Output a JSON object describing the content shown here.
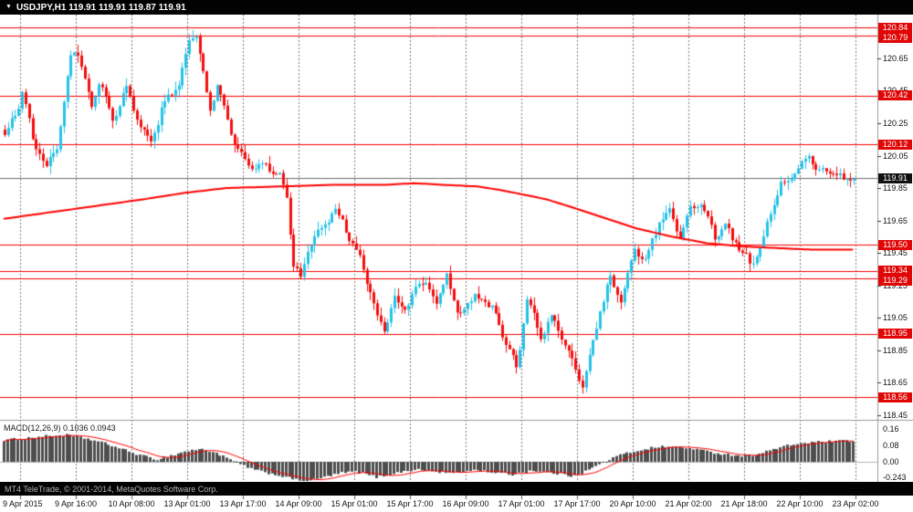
{
  "header": {
    "dropdown_icon": "▼",
    "title": "USDJPY,H1 119.91 119.91 119.87 119.91"
  },
  "macd_panel": {
    "label": "MACD(12,26,9) 0.1036 0.0943",
    "ticks": [
      {
        "label": "0.16",
        "value": 0.16
      },
      {
        "label": "0.08",
        "value": 0.08
      },
      {
        "label": "0.00",
        "value": 0.0
      }
    ],
    "min_label": "-0.243"
  },
  "footer": {
    "copyright": "MT4 TeleTrade, © 2001-2014, MetaQuotes Software Corp."
  },
  "price_axis": {
    "ticks": [
      "120.65",
      "120.45",
      "120.25",
      "120.05",
      "119.85",
      "119.65",
      "119.45",
      "119.25",
      "119.05",
      "118.85",
      "118.65",
      "118.45"
    ],
    "current_price": "119.91"
  },
  "time_axis": {
    "labels": [
      "9 Apr 2015",
      "9 Apr 16:00",
      "10 Apr 08:00",
      "13 Apr 01:00",
      "13 Apr 17:00",
      "14 Apr 09:00",
      "15 Apr 01:00",
      "15 Apr 17:00",
      "16 Apr 09:00",
      "17 Apr 01:00",
      "17 Apr 17:00",
      "20 Apr 10:00",
      "21 Apr 02:00",
      "21 Apr 18:00",
      "22 Apr 10:00",
      "23 Apr 02:00"
    ]
  },
  "colors": {
    "up_candle": "#25c2e8",
    "down_candle": "#f50d0d",
    "line_red": "#f60000",
    "ma": "#ff0000",
    "macd_bar": "#4d4d4d",
    "macd_signal": "#ff0000",
    "grid": "#7a7a7a",
    "badge_red": "#e00606",
    "badge_black": "#111111"
  },
  "chart_data": {
    "type": "candlestick",
    "symbol": "USDJPY",
    "timeframe": "H1",
    "bars": 245,
    "price_range": [
      118.42,
      120.92
    ],
    "current_price": 119.91,
    "horizontal_lines": [
      "120.84",
      "120.79",
      "120.42",
      "120.12",
      "119.50",
      "119.34",
      "119.29",
      "118.95",
      "118.56"
    ],
    "close_waypoints": [
      [
        0,
        120.18
      ],
      [
        3,
        120.3
      ],
      [
        5,
        120.44
      ],
      [
        8,
        120.16
      ],
      [
        12,
        119.97
      ],
      [
        15,
        120.12
      ],
      [
        19,
        120.66
      ],
      [
        21,
        120.7
      ],
      [
        23,
        120.52
      ],
      [
        25,
        120.36
      ],
      [
        27,
        120.52
      ],
      [
        31,
        120.27
      ],
      [
        35,
        120.47
      ],
      [
        39,
        120.22
      ],
      [
        42,
        120.15
      ],
      [
        46,
        120.38
      ],
      [
        50,
        120.49
      ],
      [
        53,
        120.76
      ],
      [
        55,
        120.8
      ],
      [
        57,
        120.55
      ],
      [
        59,
        120.33
      ],
      [
        61,
        120.49
      ],
      [
        64,
        120.27
      ],
      [
        66,
        120.12
      ],
      [
        69,
        120.02
      ],
      [
        72,
        119.97
      ],
      [
        75,
        120.0
      ],
      [
        79,
        119.93
      ],
      [
        81,
        119.8
      ],
      [
        83,
        119.38
      ],
      [
        85,
        119.3
      ],
      [
        87,
        119.46
      ],
      [
        89,
        119.55
      ],
      [
        92,
        119.62
      ],
      [
        95,
        119.72
      ],
      [
        98,
        119.6
      ],
      [
        101,
        119.47
      ],
      [
        104,
        119.29
      ],
      [
        107,
        119.06
      ],
      [
        109,
        118.99
      ],
      [
        112,
        119.16
      ],
      [
        115,
        119.1
      ],
      [
        118,
        119.22
      ],
      [
        121,
        119.3
      ],
      [
        124,
        119.12
      ],
      [
        127,
        119.33
      ],
      [
        130,
        119.06
      ],
      [
        133,
        119.15
      ],
      [
        137,
        119.18
      ],
      [
        140,
        119.1
      ],
      [
        144,
        118.9
      ],
      [
        147,
        118.73
      ],
      [
        150,
        119.18
      ],
      [
        152,
        119.05
      ],
      [
        154,
        118.93
      ],
      [
        157,
        119.05
      ],
      [
        160,
        118.92
      ],
      [
        162,
        118.84
      ],
      [
        166,
        118.62
      ],
      [
        168,
        118.8
      ],
      [
        171,
        119.1
      ],
      [
        174,
        119.3
      ],
      [
        177,
        119.15
      ],
      [
        181,
        119.47
      ],
      [
        184,
        119.4
      ],
      [
        188,
        119.64
      ],
      [
        191,
        119.72
      ],
      [
        194,
        119.55
      ],
      [
        197,
        119.72
      ],
      [
        200,
        119.76
      ],
      [
        204,
        119.56
      ],
      [
        207,
        119.62
      ],
      [
        210,
        119.52
      ],
      [
        214,
        119.38
      ],
      [
        217,
        119.46
      ],
      [
        220,
        119.7
      ],
      [
        223,
        119.86
      ],
      [
        227,
        119.94
      ],
      [
        231,
        120.04
      ],
      [
        234,
        119.94
      ],
      [
        238,
        119.97
      ],
      [
        241,
        119.9
      ],
      [
        244,
        119.91
      ]
    ],
    "ma_waypoints": [
      [
        0,
        119.66
      ],
      [
        20,
        119.72
      ],
      [
        40,
        119.78
      ],
      [
        52,
        119.82
      ],
      [
        64,
        119.85
      ],
      [
        80,
        119.86
      ],
      [
        95,
        119.87
      ],
      [
        110,
        119.87
      ],
      [
        118,
        119.88
      ],
      [
        126,
        119.87
      ],
      [
        136,
        119.86
      ],
      [
        142,
        119.84
      ],
      [
        147,
        119.82
      ],
      [
        156,
        119.78
      ],
      [
        162,
        119.74
      ],
      [
        172,
        119.67
      ],
      [
        182,
        119.6
      ],
      [
        192,
        119.55
      ],
      [
        202,
        119.51
      ],
      [
        212,
        119.49
      ],
      [
        222,
        119.48
      ],
      [
        232,
        119.47
      ],
      [
        244,
        119.47
      ]
    ],
    "macd_waypoints": [
      [
        0,
        0.105
      ],
      [
        6,
        0.115
      ],
      [
        12,
        0.125
      ],
      [
        18,
        0.13
      ],
      [
        24,
        0.112
      ],
      [
        30,
        0.085
      ],
      [
        36,
        0.05
      ],
      [
        40,
        0.028
      ],
      [
        44,
        0.012
      ],
      [
        48,
        0.03
      ],
      [
        52,
        0.05
      ],
      [
        56,
        0.062
      ],
      [
        60,
        0.05
      ],
      [
        64,
        0.018
      ],
      [
        68,
        -0.012
      ],
      [
        72,
        -0.04
      ],
      [
        76,
        -0.055
      ],
      [
        80,
        -0.07
      ],
      [
        84,
        -0.088
      ],
      [
        88,
        -0.092
      ],
      [
        92,
        -0.075
      ],
      [
        97,
        -0.055
      ],
      [
        101,
        -0.048
      ],
      [
        104,
        -0.06
      ],
      [
        107,
        -0.075
      ],
      [
        110,
        -0.065
      ],
      [
        114,
        -0.05
      ],
      [
        118,
        -0.038
      ],
      [
        122,
        -0.045
      ],
      [
        126,
        -0.052
      ],
      [
        130,
        -0.055
      ],
      [
        134,
        -0.04
      ],
      [
        138,
        -0.045
      ],
      [
        142,
        -0.055
      ],
      [
        146,
        -0.062
      ],
      [
        149,
        -0.05
      ],
      [
        152,
        -0.042
      ],
      [
        155,
        -0.05
      ],
      [
        159,
        -0.058
      ],
      [
        163,
        -0.068
      ],
      [
        166,
        -0.055
      ],
      [
        169,
        -0.03
      ],
      [
        172,
        -0.005
      ],
      [
        175,
        0.02
      ],
      [
        178,
        0.038
      ],
      [
        182,
        0.055
      ],
      [
        186,
        0.068
      ],
      [
        190,
        0.075
      ],
      [
        194,
        0.07
      ],
      [
        198,
        0.065
      ],
      [
        202,
        0.05
      ],
      [
        206,
        0.04
      ],
      [
        210,
        0.032
      ],
      [
        214,
        0.03
      ],
      [
        218,
        0.045
      ],
      [
        222,
        0.065
      ],
      [
        226,
        0.082
      ],
      [
        230,
        0.092
      ],
      [
        236,
        0.098
      ],
      [
        244,
        0.102
      ]
    ]
  }
}
